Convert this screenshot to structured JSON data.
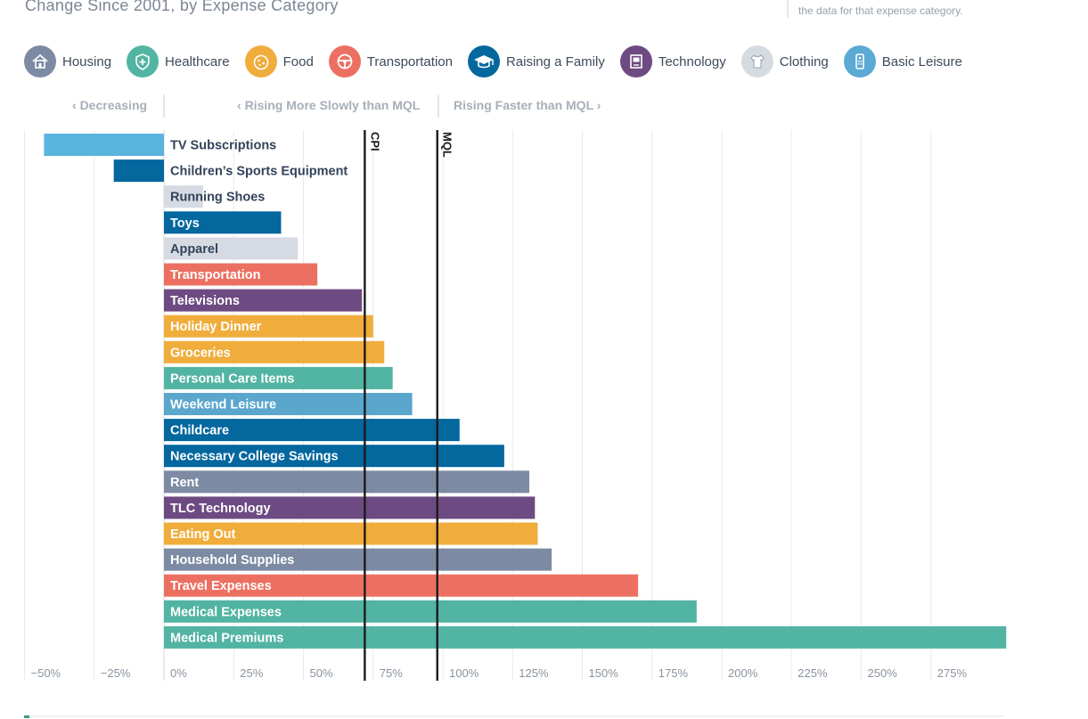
{
  "header": {
    "title": "Change Since 2001, by Expense Category",
    "note": "the data for that expense category."
  },
  "legend": [
    {
      "label": "Housing",
      "icon": "house-icon",
      "color": "#7d8aa3"
    },
    {
      "label": "Healthcare",
      "icon": "shield-cross-icon",
      "color": "#52b4a2"
    },
    {
      "label": "Food",
      "icon": "pizza-icon",
      "color": "#f0ad3c"
    },
    {
      "label": "Transportation",
      "icon": "steering-wheel-icon",
      "color": "#ec7062"
    },
    {
      "label": "Raising a Family",
      "icon": "graduation-cap-icon",
      "color": "#04679e"
    },
    {
      "label": "Technology",
      "icon": "computer-icon",
      "color": "#6e4a82"
    },
    {
      "label": "Clothing",
      "icon": "shirt-icon",
      "color": "#d6dbe2"
    },
    {
      "label": "Basic Leisure",
      "icon": "remote-control-icon",
      "color": "#5aaad3"
    }
  ],
  "zones": {
    "decreasing": "Decreasing",
    "slower": "Rising More Slowly than MQL",
    "faster": "Rising Faster than MQL"
  },
  "chart_data": {
    "type": "bar",
    "orientation": "horizontal",
    "x_unit": "percent change",
    "xlim": [
      -50,
      300
    ],
    "xticks": [
      -50,
      -25,
      0,
      25,
      50,
      75,
      100,
      125,
      150,
      175,
      200,
      225,
      250,
      275
    ],
    "xtick_labels": [
      "−50%",
      "−25%",
      "0%",
      "25%",
      "50%",
      "75%",
      "100%",
      "125%",
      "150%",
      "175%",
      "200%",
      "225%",
      "250%",
      "275%"
    ],
    "grid": true,
    "reference_lines": [
      {
        "label": "CPI",
        "value": 72
      },
      {
        "label": "MQL",
        "value": 98
      }
    ],
    "bars": [
      {
        "label": "TV Subscriptions",
        "value": -43,
        "category": "Basic Leisure",
        "color": "#5ab4dd"
      },
      {
        "label": "Children’s Sports Equipment",
        "value": -18,
        "category": "Raising a Family",
        "color": "#04679e"
      },
      {
        "label": "Running Shoes",
        "value": 14,
        "category": "Clothing",
        "color": "#d6dbe3"
      },
      {
        "label": "Toys",
        "value": 42,
        "category": "Raising a Family",
        "color": "#04679e"
      },
      {
        "label": "Apparel",
        "value": 48,
        "category": "Clothing",
        "color": "#d6dbe3"
      },
      {
        "label": "Transportation",
        "value": 55,
        "category": "Transportation",
        "color": "#ec7062"
      },
      {
        "label": "Televisions",
        "value": 71,
        "category": "Technology",
        "color": "#6e4a82"
      },
      {
        "label": "Holiday Dinner",
        "value": 75,
        "category": "Food",
        "color": "#f0ad3c"
      },
      {
        "label": "Groceries",
        "value": 79,
        "category": "Food",
        "color": "#f0ad3c"
      },
      {
        "label": "Personal Care Items",
        "value": 82,
        "category": "Healthcare",
        "color": "#52b4a2"
      },
      {
        "label": "Weekend Leisure",
        "value": 89,
        "category": "Basic Leisure",
        "color": "#5aa6cc"
      },
      {
        "label": "Childcare",
        "value": 106,
        "category": "Raising a Family",
        "color": "#04679e"
      },
      {
        "label": "Necessary College Savings",
        "value": 122,
        "category": "Raising a Family",
        "color": "#04679e"
      },
      {
        "label": "Rent",
        "value": 131,
        "category": "Housing",
        "color": "#7d8aa3"
      },
      {
        "label": "TLC Technology",
        "value": 133,
        "category": "Technology",
        "color": "#6e4a82"
      },
      {
        "label": "Eating Out",
        "value": 134,
        "category": "Food",
        "color": "#f0ad3c"
      },
      {
        "label": "Household Supplies",
        "value": 139,
        "category": "Housing",
        "color": "#7d8aa3"
      },
      {
        "label": "Travel Expenses",
        "value": 170,
        "category": "Transportation",
        "color": "#ec7062"
      },
      {
        "label": "Medical Expenses",
        "value": 191,
        "category": "Healthcare",
        "color": "#52b4a2"
      },
      {
        "label": "Medical Premiums",
        "value": 302,
        "category": "Healthcare",
        "color": "#52b4a2"
      }
    ]
  }
}
